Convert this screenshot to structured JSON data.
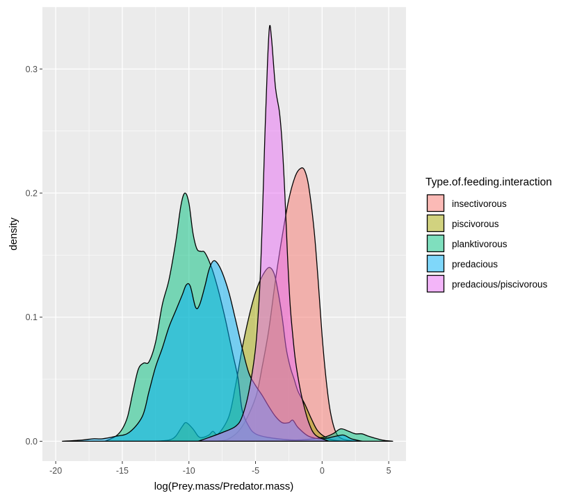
{
  "chart_data": {
    "type": "area",
    "xlabel": "log(Prey.mass/Predator.mass)",
    "ylabel": "density",
    "xlim": [
      -21,
      6.3
    ],
    "ylim": [
      -0.016,
      0.35
    ],
    "x_ticks": [
      -20,
      -15,
      -10,
      -5,
      0,
      5
    ],
    "x_tick_labels": [
      "-20",
      "-15",
      "-10",
      "-5",
      "0",
      "5"
    ],
    "y_ticks": [
      0,
      0.1,
      0.2,
      0.3
    ],
    "y_tick_labels": [
      "0.0",
      "0.1",
      "0.2",
      "0.3"
    ],
    "grid": true,
    "legend": {
      "title": "Type.of.feeding.interaction",
      "position": "right"
    },
    "series": [
      {
        "name": "insectivorous",
        "color": "#F8766D",
        "points": [
          [
            -8,
            0
          ],
          [
            -7,
            0.002
          ],
          [
            -6,
            0.012
          ],
          [
            -5,
            0.035
          ],
          [
            -4.5,
            0.06
          ],
          [
            -4,
            0.09
          ],
          [
            -3.5,
            0.13
          ],
          [
            -3,
            0.165
          ],
          [
            -2.5,
            0.195
          ],
          [
            -2,
            0.214
          ],
          [
            -1.6,
            0.22
          ],
          [
            -1.3,
            0.218
          ],
          [
            -1,
            0.205
          ],
          [
            -0.6,
            0.17
          ],
          [
            -0.3,
            0.13
          ],
          [
            0,
            0.085
          ],
          [
            0.3,
            0.05
          ],
          [
            0.6,
            0.025
          ],
          [
            1,
            0.008
          ],
          [
            1.5,
            0.002
          ],
          [
            2.5,
            0
          ]
        ]
      },
      {
        "name": "piscivorous",
        "color": "#A3A500",
        "points": [
          [
            -12.5,
            0
          ],
          [
            -11.5,
            0.001
          ],
          [
            -11,
            0.004
          ],
          [
            -10.5,
            0.012
          ],
          [
            -10.2,
            0.015
          ],
          [
            -9.7,
            0.01
          ],
          [
            -9.3,
            0.004
          ],
          [
            -9,
            0.003
          ],
          [
            -8.5,
            0.005
          ],
          [
            -8.2,
            0.008
          ],
          [
            -7.8,
            0.006
          ],
          [
            -7,
            0.02
          ],
          [
            -6.5,
            0.045
          ],
          [
            -6,
            0.075
          ],
          [
            -5.5,
            0.1
          ],
          [
            -5,
            0.12
          ],
          [
            -4.5,
            0.133
          ],
          [
            -4,
            0.14
          ],
          [
            -3.6,
            0.135
          ],
          [
            -3.3,
            0.12
          ],
          [
            -3,
            0.1
          ],
          [
            -2.7,
            0.075
          ],
          [
            -2.4,
            0.06
          ],
          [
            -2.1,
            0.05
          ],
          [
            -1.8,
            0.04
          ],
          [
            -1.3,
            0.03
          ],
          [
            -0.8,
            0.018
          ],
          [
            -0.3,
            0.008
          ],
          [
            0.5,
            0.002
          ],
          [
            1.5,
            0
          ]
        ]
      },
      {
        "name": "planktivorous",
        "color": "#00BF7D",
        "points": [
          [
            -16.3,
            0
          ],
          [
            -15.5,
            0.004
          ],
          [
            -15,
            0.01
          ],
          [
            -14.6,
            0.02
          ],
          [
            -14.2,
            0.04
          ],
          [
            -13.8,
            0.058
          ],
          [
            -13.4,
            0.063
          ],
          [
            -13,
            0.064
          ],
          [
            -12.5,
            0.08
          ],
          [
            -12,
            0.11
          ],
          [
            -11.5,
            0.13
          ],
          [
            -11,
            0.16
          ],
          [
            -10.6,
            0.19
          ],
          [
            -10.3,
            0.2
          ],
          [
            -10,
            0.192
          ],
          [
            -9.7,
            0.168
          ],
          [
            -9.4,
            0.155
          ],
          [
            -9.1,
            0.153
          ],
          [
            -8.8,
            0.152
          ],
          [
            -8.3,
            0.14
          ],
          [
            -7.8,
            0.122
          ],
          [
            -7.3,
            0.1
          ],
          [
            -7,
            0.085
          ],
          [
            -6.7,
            0.07
          ],
          [
            -6.3,
            0.05
          ],
          [
            -6,
            0.025
          ],
          [
            -5.5,
            0.012
          ],
          [
            -5,
            0.006
          ],
          [
            -4,
            0.003
          ],
          [
            -2,
            0.001
          ],
          [
            0,
            0.003
          ],
          [
            0.8,
            0.006
          ],
          [
            1.4,
            0.01
          ],
          [
            2,
            0.008
          ],
          [
            2.5,
            0.006
          ],
          [
            3,
            0.006
          ],
          [
            3.5,
            0.004
          ],
          [
            4.5,
            0.001
          ],
          [
            5.3,
            0
          ]
        ]
      },
      {
        "name": "predacious",
        "color": "#00B0F6",
        "points": [
          [
            -19.5,
            0
          ],
          [
            -18,
            0.001
          ],
          [
            -17.2,
            0.002
          ],
          [
            -16.5,
            0.002
          ],
          [
            -15.5,
            0.004
          ],
          [
            -14.5,
            0.007
          ],
          [
            -13.5,
            0.02
          ],
          [
            -13,
            0.04
          ],
          [
            -12.5,
            0.06
          ],
          [
            -12,
            0.075
          ],
          [
            -11.5,
            0.092
          ],
          [
            -11,
            0.105
          ],
          [
            -10.5,
            0.118
          ],
          [
            -10.2,
            0.126
          ],
          [
            -9.9,
            0.125
          ],
          [
            -9.5,
            0.108
          ],
          [
            -9.2,
            0.11
          ],
          [
            -8.8,
            0.125
          ],
          [
            -8.5,
            0.138
          ],
          [
            -8.2,
            0.145
          ],
          [
            -7.9,
            0.144
          ],
          [
            -7.5,
            0.136
          ],
          [
            -7,
            0.12
          ],
          [
            -6.5,
            0.098
          ],
          [
            -6,
            0.075
          ],
          [
            -5.5,
            0.055
          ],
          [
            -5,
            0.045
          ],
          [
            -4.5,
            0.037
          ],
          [
            -4,
            0.028
          ],
          [
            -3.5,
            0.02
          ],
          [
            -3,
            0.015
          ],
          [
            -2.5,
            0.015
          ],
          [
            -2.2,
            0.017
          ],
          [
            -1.8,
            0.011
          ],
          [
            -1,
            0.004
          ],
          [
            0,
            0.002
          ],
          [
            1,
            0.004
          ],
          [
            1.6,
            0.005
          ],
          [
            2.2,
            0.002
          ],
          [
            3,
            0
          ]
        ]
      },
      {
        "name": "predacious/piscivorous",
        "color": "#E76BF3",
        "points": [
          [
            -9.3,
            0
          ],
          [
            -8.5,
            0.003
          ],
          [
            -7.5,
            0.007
          ],
          [
            -6.5,
            0.012
          ],
          [
            -6,
            0.02
          ],
          [
            -5.5,
            0.04
          ],
          [
            -5,
            0.075
          ],
          [
            -4.7,
            0.12
          ],
          [
            -4.5,
            0.175
          ],
          [
            -4.3,
            0.245
          ],
          [
            -4.1,
            0.305
          ],
          [
            -3.95,
            0.334
          ],
          [
            -3.8,
            0.325
          ],
          [
            -3.5,
            0.285
          ],
          [
            -3.2,
            0.265
          ],
          [
            -3,
            0.24
          ],
          [
            -2.8,
            0.2
          ],
          [
            -2.6,
            0.15
          ],
          [
            -2.4,
            0.11
          ],
          [
            -2.2,
            0.085
          ],
          [
            -2,
            0.065
          ],
          [
            -1.7,
            0.045
          ],
          [
            -1.4,
            0.03
          ],
          [
            -1,
            0.015
          ],
          [
            -0.5,
            0.005
          ],
          [
            0.5,
            0
          ]
        ]
      }
    ]
  }
}
